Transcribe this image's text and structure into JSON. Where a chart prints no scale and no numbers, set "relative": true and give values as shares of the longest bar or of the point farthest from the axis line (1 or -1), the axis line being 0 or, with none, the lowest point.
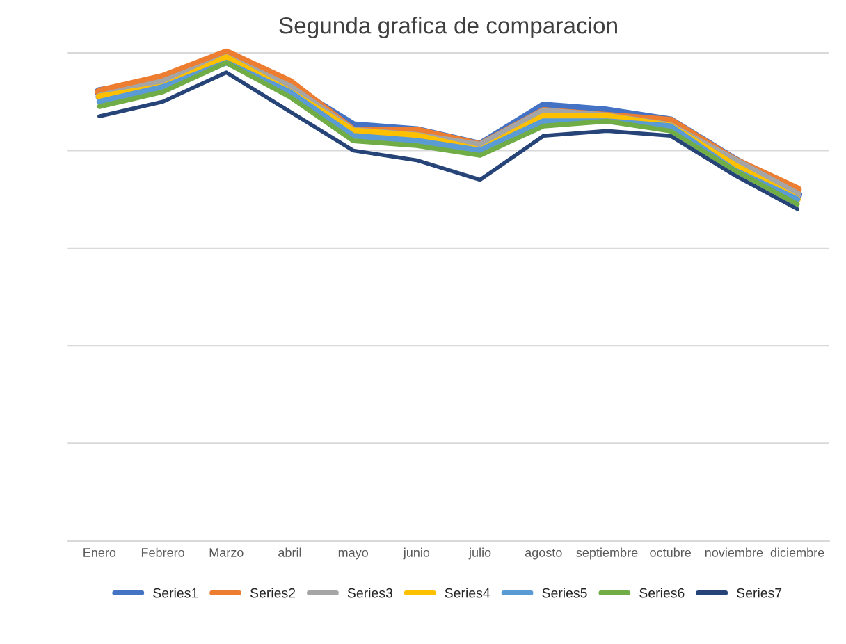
{
  "chart_data": {
    "type": "line",
    "title": "Segunda grafica de comparacion",
    "relative": true,
    "grid": "y",
    "legend": "bottom",
    "marker": "none",
    "line_style": "solid",
    "categories": [
      "Enero",
      "Febrero",
      "Marzo",
      "abril",
      "mayo",
      "junio",
      "julio",
      "agosto",
      "septiembre",
      "octubre",
      "noviembre",
      "diciembre"
    ],
    "series": [
      {
        "name": "Series1",
        "color": "#4472c4",
        "values": [
          0.92,
          0.94,
          0.99,
          0.93,
          0.85,
          0.84,
          0.81,
          0.89,
          0.88,
          0.86,
          0.78,
          0.71
        ]
      },
      {
        "name": "Series2",
        "color": "#ed7d31",
        "values": [
          0.92,
          0.95,
          1,
          0.94,
          0.84,
          0.84,
          0.81,
          0.88,
          0.87,
          0.86,
          0.78,
          0.72
        ]
      },
      {
        "name": "Series3",
        "color": "#a5a5a5",
        "values": [
          0.91,
          0.94,
          0.99,
          0.93,
          0.84,
          0.83,
          0.81,
          0.88,
          0.87,
          0.85,
          0.78,
          0.71
        ]
      },
      {
        "name": "Series4",
        "color": "#ffc000",
        "values": [
          0.91,
          0.93,
          0.99,
          0.92,
          0.84,
          0.83,
          0.8,
          0.87,
          0.87,
          0.85,
          0.77,
          0.7
        ]
      },
      {
        "name": "Series5",
        "color": "#5b9bd5",
        "values": [
          0.9,
          0.93,
          0.98,
          0.92,
          0.83,
          0.82,
          0.8,
          0.86,
          0.86,
          0.85,
          0.76,
          0.7
        ]
      },
      {
        "name": "Series6",
        "color": "#70ad47",
        "values": [
          0.89,
          0.92,
          0.98,
          0.91,
          0.82,
          0.81,
          0.79,
          0.85,
          0.86,
          0.84,
          0.76,
          0.69
        ]
      },
      {
        "name": "Series7",
        "color": "#264478",
        "values": [
          0.87,
          0.9,
          0.96,
          0.88,
          0.8,
          0.78,
          0.74,
          0.83,
          0.84,
          0.83,
          0.75,
          0.68
        ]
      }
    ]
  }
}
